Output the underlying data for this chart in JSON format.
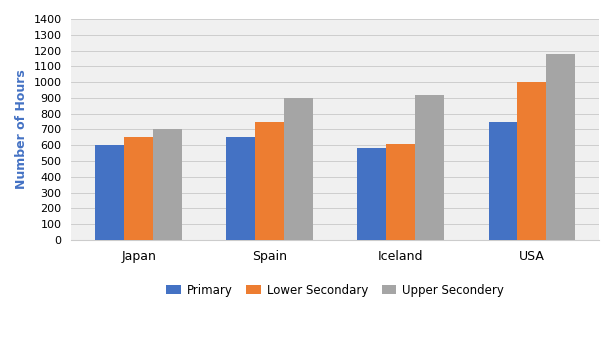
{
  "categories": [
    "Japan",
    "Spain",
    "Iceland",
    "USA"
  ],
  "series": {
    "Primary": [
      600,
      650,
      580,
      750
    ],
    "Lower Secondary": [
      650,
      750,
      610,
      1000
    ],
    "Upper Secondery": [
      700,
      900,
      920,
      1175
    ]
  },
  "colors": {
    "Primary": "#4472C4",
    "Lower Secondary": "#ED7D31",
    "Upper Secondery": "#A5A5A5"
  },
  "ylabel": "Number of Hours",
  "ylim": [
    0,
    1400
  ],
  "yticks": [
    0,
    100,
    200,
    300,
    400,
    500,
    600,
    700,
    800,
    900,
    1000,
    1100,
    1200,
    1300,
    1400
  ],
  "bar_width": 0.22,
  "legend_labels": [
    "Primary",
    "Lower Secondary",
    "Upper Secondery"
  ],
  "background_color": "#FFFFFF",
  "grid_color": "#C8C8C8"
}
